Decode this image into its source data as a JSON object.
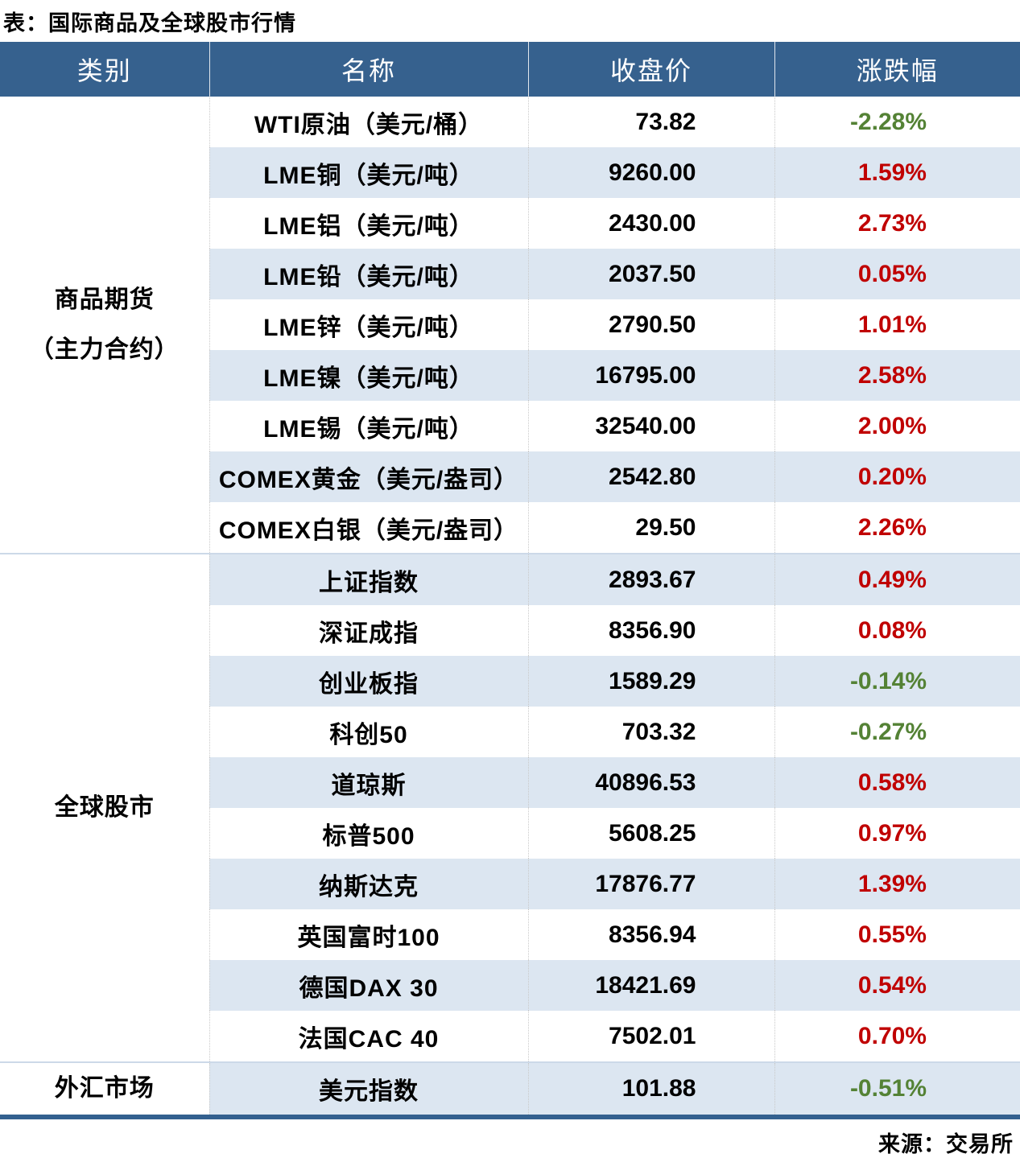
{
  "title": "表：国际商品及全球股市行情",
  "source": "来源：交易所",
  "colors": {
    "header_bg": "#36618e",
    "stripe": "#dce6f1",
    "up": "#c00000",
    "down": "#548235",
    "section_line": "#ccd9e8",
    "bottom_border": "#33608f"
  },
  "table": {
    "headers": [
      "类别",
      "名称",
      "收盘价",
      "涨跌幅"
    ],
    "sections": [
      {
        "category_lines": [
          "商品期货",
          "（主力合约）"
        ],
        "rows": [
          {
            "name": "WTI原油（美元/桶）",
            "close": "73.82",
            "change": "-2.28%"
          },
          {
            "name": "LME铜（美元/吨）",
            "close": "9260.00",
            "change": "1.59%"
          },
          {
            "name": "LME铝（美元/吨）",
            "close": "2430.00",
            "change": "2.73%"
          },
          {
            "name": "LME铅（美元/吨）",
            "close": "2037.50",
            "change": "0.05%"
          },
          {
            "name": "LME锌（美元/吨）",
            "close": "2790.50",
            "change": "1.01%"
          },
          {
            "name": "LME镍（美元/吨）",
            "close": "16795.00",
            "change": "2.58%"
          },
          {
            "name": "LME锡（美元/吨）",
            "close": "32540.00",
            "change": "2.00%"
          },
          {
            "name": "COMEX黄金（美元/盎司）",
            "close": "2542.80",
            "change": "0.20%"
          },
          {
            "name": "COMEX白银（美元/盎司）",
            "close": "29.50",
            "change": "2.26%"
          }
        ]
      },
      {
        "category_lines": [
          "全球股市"
        ],
        "rows": [
          {
            "name": "上证指数",
            "close": "2893.67",
            "change": "0.49%"
          },
          {
            "name": "深证成指",
            "close": "8356.90",
            "change": "0.08%"
          },
          {
            "name": "创业板指",
            "close": "1589.29",
            "change": "-0.14%"
          },
          {
            "name": "科创50",
            "close": "703.32",
            "change": "-0.27%"
          },
          {
            "name": "道琼斯",
            "close": "40896.53",
            "change": "0.58%"
          },
          {
            "name": "标普500",
            "close": "5608.25",
            "change": "0.97%"
          },
          {
            "name": "纳斯达克",
            "close": "17876.77",
            "change": "1.39%"
          },
          {
            "name": "英国富时100",
            "close": "8356.94",
            "change": "0.55%"
          },
          {
            "name": "德国DAX 30",
            "close": "18421.69",
            "change": "0.54%"
          },
          {
            "name": "法国CAC 40",
            "close": "7502.01",
            "change": "0.70%"
          }
        ]
      },
      {
        "category_lines": [
          "外汇市场"
        ],
        "rows": [
          {
            "name": "美元指数",
            "close": "101.88",
            "change": "-0.51%"
          }
        ]
      }
    ]
  },
  "chart_data": {
    "type": "table",
    "title": "表：国际商品及全球股市行情",
    "columns": [
      "类别",
      "名称",
      "收盘价",
      "涨跌幅"
    ],
    "rows": [
      [
        "商品期货（主力合约）",
        "WTI原油（美元/桶）",
        73.82,
        "-2.28%"
      ],
      [
        "商品期货（主力合约）",
        "LME铜（美元/吨）",
        9260.0,
        "1.59%"
      ],
      [
        "商品期货（主力合约）",
        "LME铝（美元/吨）",
        2430.0,
        "2.73%"
      ],
      [
        "商品期货（主力合约）",
        "LME铅（美元/吨）",
        2037.5,
        "0.05%"
      ],
      [
        "商品期货（主力合约）",
        "LME锌（美元/吨）",
        2790.5,
        "1.01%"
      ],
      [
        "商品期货（主力合约）",
        "LME镍（美元/吨）",
        16795.0,
        "2.58%"
      ],
      [
        "商品期货（主力合约）",
        "LME锡（美元/吨）",
        32540.0,
        "2.00%"
      ],
      [
        "商品期货（主力合约）",
        "COMEX黄金（美元/盎司）",
        2542.8,
        "0.20%"
      ],
      [
        "商品期货（主力合约）",
        "COMEX白银（美元/盎司）",
        29.5,
        "2.26%"
      ],
      [
        "全球股市",
        "上证指数",
        2893.67,
        "0.49%"
      ],
      [
        "全球股市",
        "深证成指",
        8356.9,
        "0.08%"
      ],
      [
        "全球股市",
        "创业板指",
        1589.29,
        "-0.14%"
      ],
      [
        "全球股市",
        "科创50",
        703.32,
        "-0.27%"
      ],
      [
        "全球股市",
        "道琼斯",
        40896.53,
        "0.58%"
      ],
      [
        "全球股市",
        "标普500",
        5608.25,
        "0.97%"
      ],
      [
        "全球股市",
        "纳斯达克",
        17876.77,
        "1.39%"
      ],
      [
        "全球股市",
        "英国富时100",
        8356.94,
        "0.55%"
      ],
      [
        "全球股市",
        "德国DAX 30",
        18421.69,
        "0.54%"
      ],
      [
        "全球股市",
        "法国CAC 40",
        7502.01,
        "0.70%"
      ],
      [
        "外汇市场",
        "美元指数",
        101.88,
        "-0.51%"
      ]
    ],
    "notes": "positive changes shown in red (#c00000), negative in green (#548235)"
  }
}
